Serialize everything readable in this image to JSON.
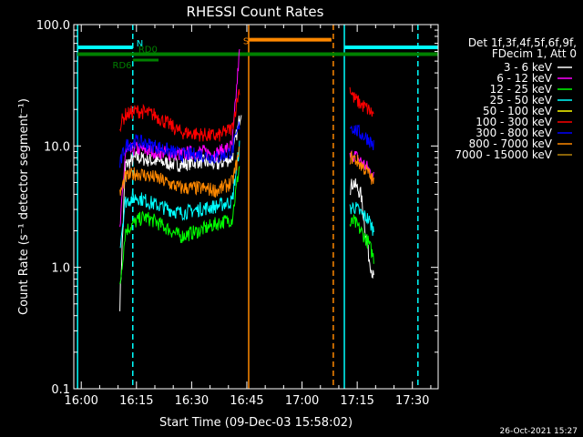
{
  "chart_data": {
    "type": "line",
    "title": "RHESSI Count Rates",
    "xlabel": "Start Time (09-Dec-03 15:58:02)",
    "ylabel": "Count Rate (s⁻¹ detector segment⁻¹)",
    "y_scale": "log",
    "ylim": [
      0.1,
      100
    ],
    "xlim": [
      "15:58:02",
      "17:37:00"
    ],
    "grid": false,
    "x_tick_labels": [
      "16:00",
      "16:15",
      "16:30",
      "16:45",
      "17:00",
      "17:15",
      "17:30"
    ],
    "x_tick_minutes": [
      0,
      15,
      30,
      45,
      60,
      75,
      90
    ],
    "y_tick_labels": [
      "0.1",
      "1.0",
      "10.0",
      "100.0"
    ],
    "y_tick_values": [
      0.1,
      1,
      10,
      100
    ],
    "legend_position": "right",
    "legend_header": [
      "Det 1f,3f,4f,5f,6f,9f,",
      "FDecim 1, Att 0"
    ],
    "series": [
      {
        "name": "3 - 6 keV",
        "color": "#ffffff",
        "segments": [
          {
            "t": [
              10.5,
              12,
              15,
              17,
              20,
              27,
              32,
              37,
              41,
              43.5
            ],
            "y": [
              0.5,
              7.0,
              8.0,
              7.8,
              7.5,
              7.0,
              7.5,
              7.0,
              8.0,
              20.0
            ]
          },
          {
            "t": [
              73,
              74,
              76,
              78,
              79.5
            ],
            "y": [
              4.5,
              5.0,
              4.0,
              1.3,
              0.8
            ]
          }
        ]
      },
      {
        "name": "6 - 12 keV",
        "color": "#ff00ff",
        "segments": [
          {
            "t": [
              10.5,
              12,
              15,
              17,
              20,
              27,
              32,
              37,
              41,
              43
            ],
            "y": [
              2.0,
              8.8,
              9.5,
              9.2,
              9.0,
              8.5,
              9.0,
              8.7,
              10.0,
              60.0
            ]
          },
          {
            "t": [
              73,
              74,
              76,
              78,
              79.5
            ],
            "y": [
              8.0,
              8.5,
              7.5,
              6.5,
              5.5
            ]
          }
        ]
      },
      {
        "name": "12 - 25 keV",
        "color": "#00ff00",
        "segments": [
          {
            "t": [
              10.5,
              12,
              15,
              17,
              20,
              27,
              32,
              37,
              41,
              43
            ],
            "y": [
              0.7,
              2.0,
              2.4,
              2.6,
              2.4,
              1.8,
              2.0,
              2.3,
              2.5,
              7.0
            ]
          },
          {
            "t": [
              73,
              74,
              76,
              78,
              79.5
            ],
            "y": [
              2.2,
              2.4,
              2.0,
              1.6,
              1.2
            ]
          }
        ]
      },
      {
        "name": "25 - 50 keV",
        "color": "#00ffff",
        "segments": [
          {
            "t": [
              10.5,
              12,
              15,
              17,
              20,
              27,
              32,
              37,
              41,
              43
            ],
            "y": [
              1.5,
              3.5,
              3.8,
              3.6,
              3.3,
              2.8,
              3.0,
              3.2,
              3.5,
              10.0
            ]
          },
          {
            "t": [
              73,
              74,
              76,
              78,
              79.5
            ],
            "y": [
              3.0,
              3.2,
              2.8,
              2.5,
              2.0
            ]
          }
        ]
      },
      {
        "name": "50 - 100 keV",
        "color": "#ffff00",
        "segments": []
      },
      {
        "name": "100 - 300 keV",
        "color": "#ff0000",
        "segments": [
          {
            "t": [
              10.5,
              12,
              15,
              17,
              20,
              27,
              32,
              37,
              41,
              43
            ],
            "y": [
              15.0,
              18.0,
              19.5,
              19.0,
              18.0,
              13.0,
              12.5,
              12.0,
              14.0,
              30.0
            ]
          },
          {
            "t": [
              73,
              74,
              76,
              78,
              79.5
            ],
            "y": [
              30.0,
              25.0,
              22.0,
              20.0,
              18.0
            ]
          }
        ]
      },
      {
        "name": "300 - 800 keV",
        "color": "#0000ff",
        "segments": [
          {
            "t": [
              10.5,
              12,
              15,
              17,
              20,
              27,
              32,
              37,
              41,
              43
            ],
            "y": [
              7.0,
              10.0,
              11.0,
              10.5,
              10.0,
              8.5,
              8.5,
              8.0,
              9.0,
              15.0
            ]
          },
          {
            "t": [
              73,
              74,
              76,
              78,
              79.5
            ],
            "y": [
              15.0,
              14.0,
              12.5,
              11.5,
              10.0
            ]
          }
        ]
      },
      {
        "name": "800 - 7000 keV",
        "color": "#ff8800",
        "segments": [
          {
            "t": [
              10.5,
              12,
              15,
              17,
              20,
              27,
              32,
              37,
              41,
              43
            ],
            "y": [
              4.0,
              5.5,
              6.0,
              5.8,
              5.5,
              4.5,
              4.5,
              4.3,
              5.0,
              9.0
            ]
          },
          {
            "t": [
              73,
              74,
              76,
              78,
              79.5
            ],
            "y": [
              8.0,
              8.0,
              7.0,
              6.0,
              5.0
            ]
          }
        ]
      },
      {
        "name": "7000 - 15000 keV",
        "color": "#b8860b",
        "segments": []
      }
    ],
    "vertical_lines": [
      {
        "t": -1.0,
        "color": "#00ffff",
        "style": "solid"
      },
      {
        "t": 14.0,
        "color": "#00ffff",
        "style": "dashed"
      },
      {
        "t": 45.5,
        "color": "#ff8800",
        "style": "solid"
      },
      {
        "t": 68.5,
        "color": "#ff8800",
        "style": "dashed"
      },
      {
        "t": 71.5,
        "color": "#00ffff",
        "style": "solid"
      },
      {
        "t": 91.5,
        "color": "#00ffff",
        "style": "dashed"
      }
    ],
    "flag_bars": [
      {
        "label": "N",
        "color": "#00ffff",
        "y": 65,
        "intervals": [
          [
            -1,
            14
          ],
          [
            71.5,
            97
          ]
        ],
        "label_t": 15
      }
    ],
    "flag_labels": {
      "rd0": "RD0",
      "rd6": "RD6",
      "si": "S"
    },
    "flag_other": {
      "rd0_y": 57,
      "rd0_intervals": [
        [
          -1,
          97
        ]
      ],
      "rd0_label_t": 15.5,
      "rd6_y": 51,
      "rd6_intervals": [
        [
          14,
          21
        ]
      ],
      "rd6_label_t": 8.5,
      "si_y": 75,
      "si_intervals": [
        [
          45.5,
          68
        ]
      ],
      "si_color": "#ff8800",
      "si_label_t": 44,
      "green": "#008000"
    },
    "footer_timestamp": "26-Oct-2021 15:27"
  }
}
